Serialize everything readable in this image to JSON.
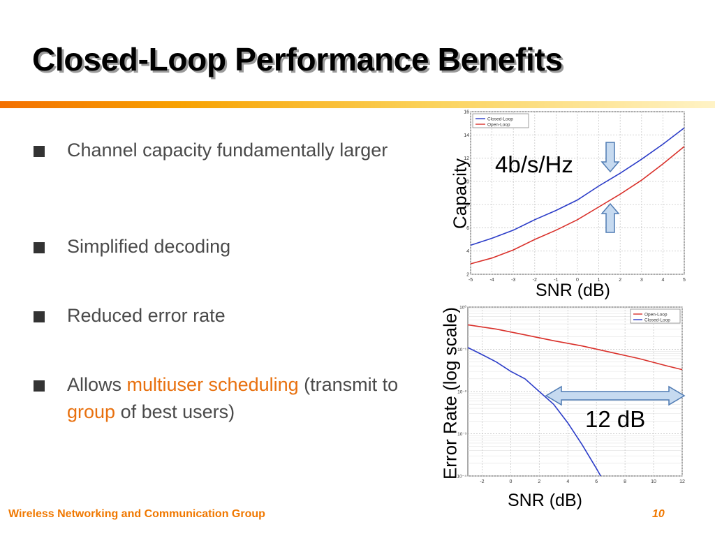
{
  "slide": {
    "title": "Closed-Loop Performance Benefits",
    "bullets": [
      {
        "text": "Channel capacity fundamentally larger"
      },
      {
        "text": "Simplified decoding"
      },
      {
        "text": "Reduced error rate"
      },
      {
        "text_before": "Allows ",
        "highlight1": "multiuser scheduling",
        "text_middle": " (transmit to ",
        "highlight2": "group",
        "text_after": " of best users)"
      }
    ],
    "footer": {
      "group": "Wireless Networking and Communication Group",
      "page_number": "10"
    },
    "colors": {
      "accent": "#f07800",
      "closed_loop": "#2b3cc8",
      "open_loop": "#d9302a",
      "arrow_fill": "#c6daf0",
      "arrow_stroke": "#4f7bb3"
    }
  },
  "chart_data": [
    {
      "type": "line",
      "ylabel": "Capacity",
      "xlabel": "SNR (dB)",
      "xlim": [
        -5,
        5
      ],
      "ylim": [
        2,
        16
      ],
      "x_ticks": [
        -5,
        -4,
        -3,
        -2,
        -1,
        0,
        1,
        2,
        3,
        4,
        5
      ],
      "y_ticks": [
        2,
        4,
        6,
        8,
        10,
        12,
        14,
        16
      ],
      "grid": true,
      "legend_position": "top-left",
      "annotation": "4b/s/Hz",
      "series": [
        {
          "name": "Closed-Loop",
          "color": "#2b3cc8",
          "x": [
            -5,
            -4,
            -3,
            -2,
            -1,
            0,
            1,
            2,
            3,
            4,
            5
          ],
          "y": [
            4.5,
            5.1,
            5.8,
            6.7,
            7.5,
            8.4,
            9.6,
            10.7,
            11.9,
            13.2,
            14.6
          ]
        },
        {
          "name": "Open-Loop",
          "color": "#d9302a",
          "x": [
            -5,
            -4,
            -3,
            -2,
            -1,
            0,
            1,
            2,
            3,
            4,
            5
          ],
          "y": [
            2.9,
            3.4,
            4.1,
            5.0,
            5.8,
            6.7,
            7.8,
            8.9,
            10.1,
            11.5,
            13.0
          ]
        }
      ]
    },
    {
      "type": "line",
      "ylabel": "Error Rate (log scale)",
      "xlabel": "SNR (dB)",
      "xlim": [
        -3,
        12
      ],
      "y_log": true,
      "ylim": [
        0.0001,
        1
      ],
      "x_ticks": [
        -2,
        0,
        2,
        4,
        6,
        8,
        10,
        12
      ],
      "y_ticks": [
        0.0001,
        0.001,
        0.01,
        0.1,
        1
      ],
      "y_tick_labels": [
        "10⁻⁴",
        "10⁻³",
        "10⁻²",
        "10⁻¹",
        "10⁰"
      ],
      "grid": true,
      "legend_position": "top-right",
      "annotation": "12 dB",
      "series": [
        {
          "name": "Open-Loop",
          "color": "#d9302a",
          "x": [
            -3,
            -1,
            1,
            3,
            5,
            7,
            9,
            11,
            12
          ],
          "y": [
            0.38,
            0.3,
            0.22,
            0.16,
            0.12,
            0.085,
            0.06,
            0.04,
            0.033
          ]
        },
        {
          "name": "Closed-Loop",
          "color": "#2b3cc8",
          "x": [
            -3,
            -2,
            -1,
            0,
            1,
            2,
            3,
            4,
            5,
            6,
            6.3
          ],
          "y": [
            0.11,
            0.075,
            0.05,
            0.03,
            0.02,
            0.01,
            0.005,
            0.0018,
            0.00055,
            0.00015,
            0.0001
          ]
        }
      ]
    }
  ]
}
